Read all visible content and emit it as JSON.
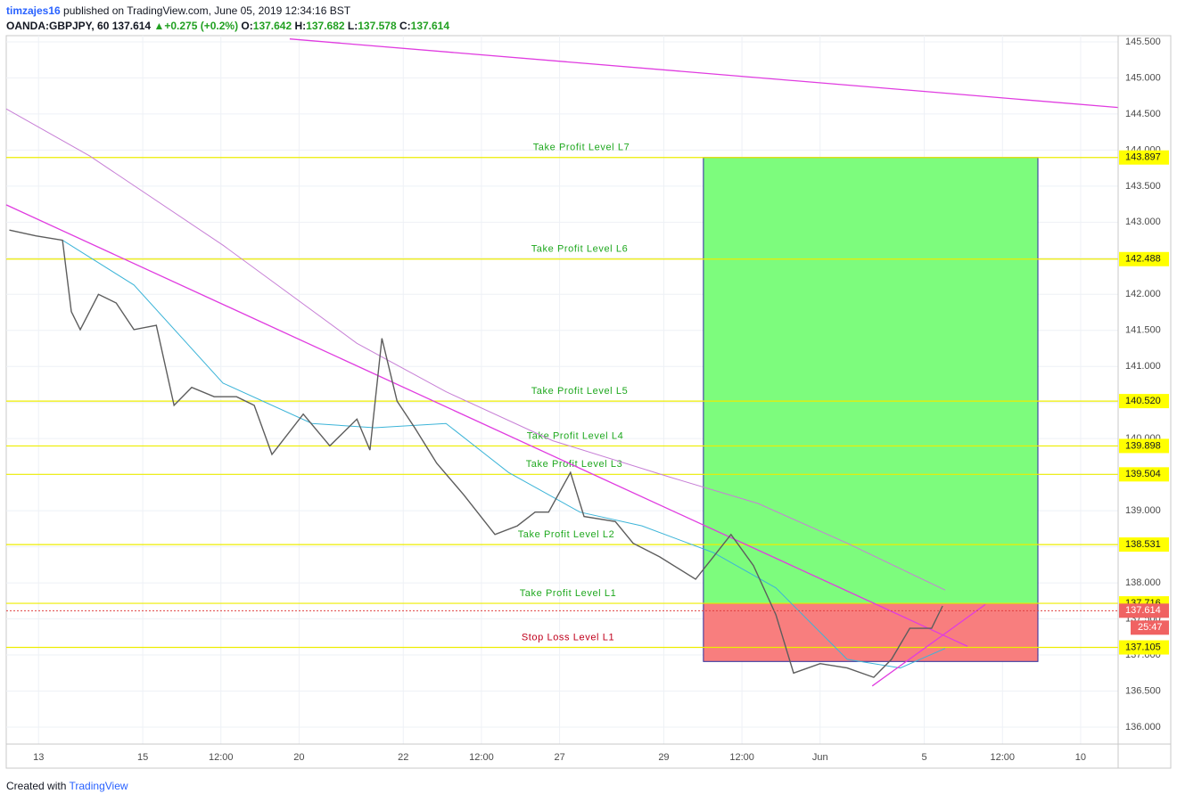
{
  "header": {
    "user": "timzajes16",
    "published": "published on TradingView.com, June 05, 2019 12:34:16 BST",
    "symbol": "OANDA:GBPJPY, 60",
    "last": "137.614",
    "change": "+0.275 (+0.2%)",
    "ohlc": [
      {
        "label": "O:",
        "value": "137.642"
      },
      {
        "label": "H:",
        "value": "137.682"
      },
      {
        "label": "L:",
        "value": "137.578"
      },
      {
        "label": "C:",
        "value": "137.614"
      }
    ]
  },
  "chart_data": {
    "type": "line",
    "color": "#5d5d5d",
    "x": [
      -0.56,
      -0.05,
      0.46,
      0.63,
      0.8,
      1.15,
      1.49,
      1.83,
      2.26,
      2.6,
      2.94,
      3.37,
      3.8,
      4.14,
      4.48,
      5.08,
      5.59,
      6.11,
      6.36,
      6.59,
      6.88,
      7.22,
      7.64,
      8.16,
      8.76,
      9.19,
      9.53,
      9.79,
      10.21,
      10.47,
      11.07,
      11.41,
      11.92,
      12.61,
      12.95,
      13.29,
      13.72,
      14.15,
      14.49,
      15.0,
      15.52,
      16.03,
      16.37,
      16.72,
      17.14,
      17.35
    ],
    "values": [
      142.89,
      142.81,
      142.75,
      141.76,
      141.51,
      142.0,
      141.88,
      141.51,
      141.57,
      140.46,
      140.71,
      140.58,
      140.58,
      140.46,
      139.78,
      140.34,
      139.9,
      140.27,
      139.84,
      141.39,
      140.52,
      140.15,
      139.66,
      139.22,
      138.67,
      138.79,
      138.98,
      138.98,
      139.53,
      138.92,
      138.85,
      138.55,
      138.36,
      138.05,
      138.36,
      138.67,
      138.24,
      137.56,
      136.75,
      136.88,
      136.82,
      136.69,
      136.94,
      137.37,
      137.37,
      137.68
    ],
    "xlim": [
      -0.62,
      20.72
    ],
    "ylim": [
      135.765,
      145.586
    ],
    "xticks": [
      {
        "value": 0,
        "label": "13"
      },
      {
        "value": 2,
        "label": "15"
      },
      {
        "value": 3.5,
        "label": "12:00"
      },
      {
        "value": 5,
        "label": "20"
      },
      {
        "value": 7,
        "label": "22"
      },
      {
        "value": 8.5,
        "label": "12:00"
      },
      {
        "value": 10,
        "label": "27"
      },
      {
        "value": 12,
        "label": "29"
      },
      {
        "value": 13.5,
        "label": "12:00"
      },
      {
        "value": 15,
        "label": "Jun"
      },
      {
        "value": 17,
        "label": "5"
      },
      {
        "value": 18.5,
        "label": "12:00"
      },
      {
        "value": 20,
        "label": "10"
      }
    ],
    "yticks": [
      {
        "value": 136,
        "label": "136.000"
      },
      {
        "value": 136.5,
        "label": "136.500"
      },
      {
        "value": 137,
        "label": "137.000"
      },
      {
        "value": 137.5,
        "label": "137.500"
      },
      {
        "value": 138,
        "label": "138.000"
      },
      {
        "value": 138.5,
        "label": "138.500"
      },
      {
        "value": 139,
        "label": "139.000"
      },
      {
        "value": 139.5,
        "label": "139.500"
      },
      {
        "value": 140,
        "label": "140.000"
      },
      {
        "value": 140.5,
        "label": "140.500"
      },
      {
        "value": 141,
        "label": "141.000"
      },
      {
        "value": 141.5,
        "label": "141.500"
      },
      {
        "value": 142,
        "label": "142.000"
      },
      {
        "value": 142.5,
        "label": "142.500"
      },
      {
        "value": 143,
        "label": "143.000"
      },
      {
        "value": 143.5,
        "label": "143.500"
      },
      {
        "value": 144,
        "label": "144.000"
      },
      {
        "value": 144.5,
        "label": "144.500"
      },
      {
        "value": 145,
        "label": "145.000"
      },
      {
        "value": 145.5,
        "label": "145.500"
      }
    ],
    "grid": true,
    "moving_averages": [
      {
        "color": "#c77fd6",
        "x": [
          -0.62,
          0.98,
          3.54,
          6.11,
          7.82,
          9.87,
          12.1,
          13.81,
          15.52,
          17.4
        ],
        "values": [
          144.57,
          143.92,
          142.68,
          141.32,
          140.65,
          139.97,
          139.47,
          139.1,
          138.55,
          137.9
        ]
      },
      {
        "color": "#3cb4d8",
        "x": [
          0.46,
          1.83,
          3.54,
          5.25,
          6.45,
          7.82,
          9.02,
          10.39,
          11.58,
          12.95,
          14.15,
          15.52,
          16.54,
          17.4
        ],
        "values": [
          142.75,
          142.13,
          140.77,
          140.21,
          140.15,
          140.21,
          139.53,
          138.98,
          138.79,
          138.42,
          137.93,
          136.94,
          136.82,
          137.09
        ]
      }
    ],
    "trendlines": [
      {
        "color": "#e03ce0",
        "x": [
          -0.62,
          17.83
        ],
        "values": [
          143.24,
          137.12
        ]
      },
      {
        "color": "#e03ce0",
        "x": [
          4.82,
          20.72
        ],
        "values": [
          145.54,
          144.59
        ]
      },
      {
        "color": "#e03ce0",
        "x": [
          16.0,
          18.17
        ],
        "values": [
          136.57,
          137.7
        ]
      }
    ],
    "levels": [
      {
        "name": "Take Profit Level L7",
        "value": 143.897
      },
      {
        "name": "Take Profit Level L6",
        "value": 142.488
      },
      {
        "name": "Take Profit Level L5",
        "value": 140.52,
        "value_label": "140.520"
      },
      {
        "name": "Take Profit Level L4",
        "value": 139.898
      },
      {
        "name": "Take Profit Level L3",
        "value": 139.504
      },
      {
        "name": "Take Profit Level L2",
        "value": 138.531
      },
      {
        "name": "Take Profit Level L1",
        "value": 137.716
      },
      {
        "name": "Stop Loss Level L1",
        "value": 137.105
      }
    ],
    "position": {
      "x": [
        12.76,
        19.18
      ],
      "entry": 137.716,
      "target": 143.897,
      "stop": 136.91
    },
    "last_price": 137.614,
    "countdown": "25:47"
  },
  "footer": {
    "created": "Created with",
    "brand": "TradingView"
  }
}
